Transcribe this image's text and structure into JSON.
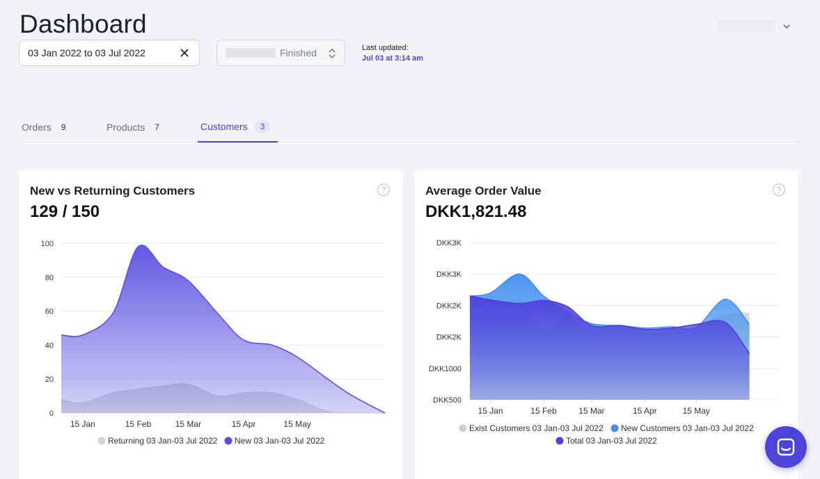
{
  "header": {
    "title": "Dashboard",
    "date_range": "03 Jan 2022 to 03 Jul 2022",
    "status_value": "Finished",
    "last_updated_label": "Last updated:",
    "last_updated_value": "Jul 03 at 3:14 am"
  },
  "tabs": [
    {
      "label": "Orders",
      "count": "9",
      "active": false
    },
    {
      "label": "Products",
      "count": "7",
      "active": false
    },
    {
      "label": "Customers",
      "count": "3",
      "active": true
    }
  ],
  "cards": {
    "customers": {
      "title": "New vs Returning Customers",
      "value": "129 / 150"
    },
    "aov": {
      "title": "Average Order Value",
      "value": "DKK1,821.48"
    }
  },
  "chart_data": [
    {
      "type": "area",
      "title": "New vs Returning Customers",
      "x_ticks": [
        "15 Jan",
        "15 Feb",
        "15 Mar",
        "15 Apr",
        "15 May"
      ],
      "y_ticks": [
        "0",
        "20",
        "40",
        "60",
        "80",
        "100"
      ],
      "ylim": [
        0,
        100
      ],
      "x": [
        "2022-01-03",
        "2022-01-15",
        "2022-02-01",
        "2022-02-15",
        "2022-03-01",
        "2022-03-15",
        "2022-04-01",
        "2022-04-15",
        "2022-05-01",
        "2022-05-15",
        "2022-06-01",
        "2022-06-15",
        "2022-07-03"
      ],
      "series": [
        {
          "name": "Returning 03 Jan-03 Jul 2022",
          "color": "#d3d4d9",
          "values": [
            8,
            6,
            12,
            14,
            16,
            17,
            10,
            12,
            12,
            8,
            1,
            0,
            0
          ]
        },
        {
          "name": "New 03 Jan-03 Jul 2022",
          "color": "#5b4fe0",
          "values": [
            46,
            46,
            59,
            98,
            86,
            78,
            58,
            43,
            40,
            33,
            20,
            10,
            0
          ]
        }
      ],
      "legend": "bottom",
      "grid": true
    },
    {
      "type": "area",
      "title": "Average Order Value",
      "x_ticks": [
        "15 Jan",
        "15 Feb",
        "15 Mar",
        "15 Apr",
        "15 May"
      ],
      "y_ticks": [
        "DKK500",
        "DKK1000",
        "DKK2K",
        "DKK2K",
        "DKK3K",
        "DKK3K"
      ],
      "ylim": [
        500,
        3000
      ],
      "x": [
        "2022-01-03",
        "2022-01-15",
        "2022-02-01",
        "2022-02-15",
        "2022-03-01",
        "2022-03-15",
        "2022-04-01",
        "2022-04-15",
        "2022-05-01",
        "2022-05-15",
        "2022-06-01",
        "2022-06-15"
      ],
      "series": [
        {
          "name": "Exist Customers 03 Jan-03 Jul 2022",
          "color": "#cfd0d5",
          "values": [
            2140,
            1960,
            2100,
            1600,
            1860,
            1620,
            1680,
            1580,
            1610,
            1680,
            1850,
            1880
          ]
        },
        {
          "name": "New Customers 03 Jan-03 Jul 2022",
          "color": "#3f8ef0",
          "values": [
            2150,
            2200,
            2500,
            2150,
            1900,
            1710,
            1680,
            1640,
            1660,
            1650,
            2100,
            1700
          ]
        },
        {
          "name": "Total 03 Jan-03 Jul 2022",
          "color": "#4e3fdc",
          "values": [
            2150,
            2090,
            2030,
            2080,
            1980,
            1680,
            1680,
            1620,
            1640,
            1700,
            1730,
            1230
          ]
        }
      ],
      "legend": "bottom",
      "grid": true
    }
  ],
  "icons": {
    "clear": "close-icon",
    "select": "updown-icon",
    "user_menu": "chevron-down-icon",
    "help": "help-circle-icon",
    "launcher": "chat-icon"
  },
  "colors": {
    "accent": "#4a45d8",
    "new": "#5b4fe0",
    "returning": "#d3d4d9",
    "new_customers": "#3f8ef0"
  }
}
